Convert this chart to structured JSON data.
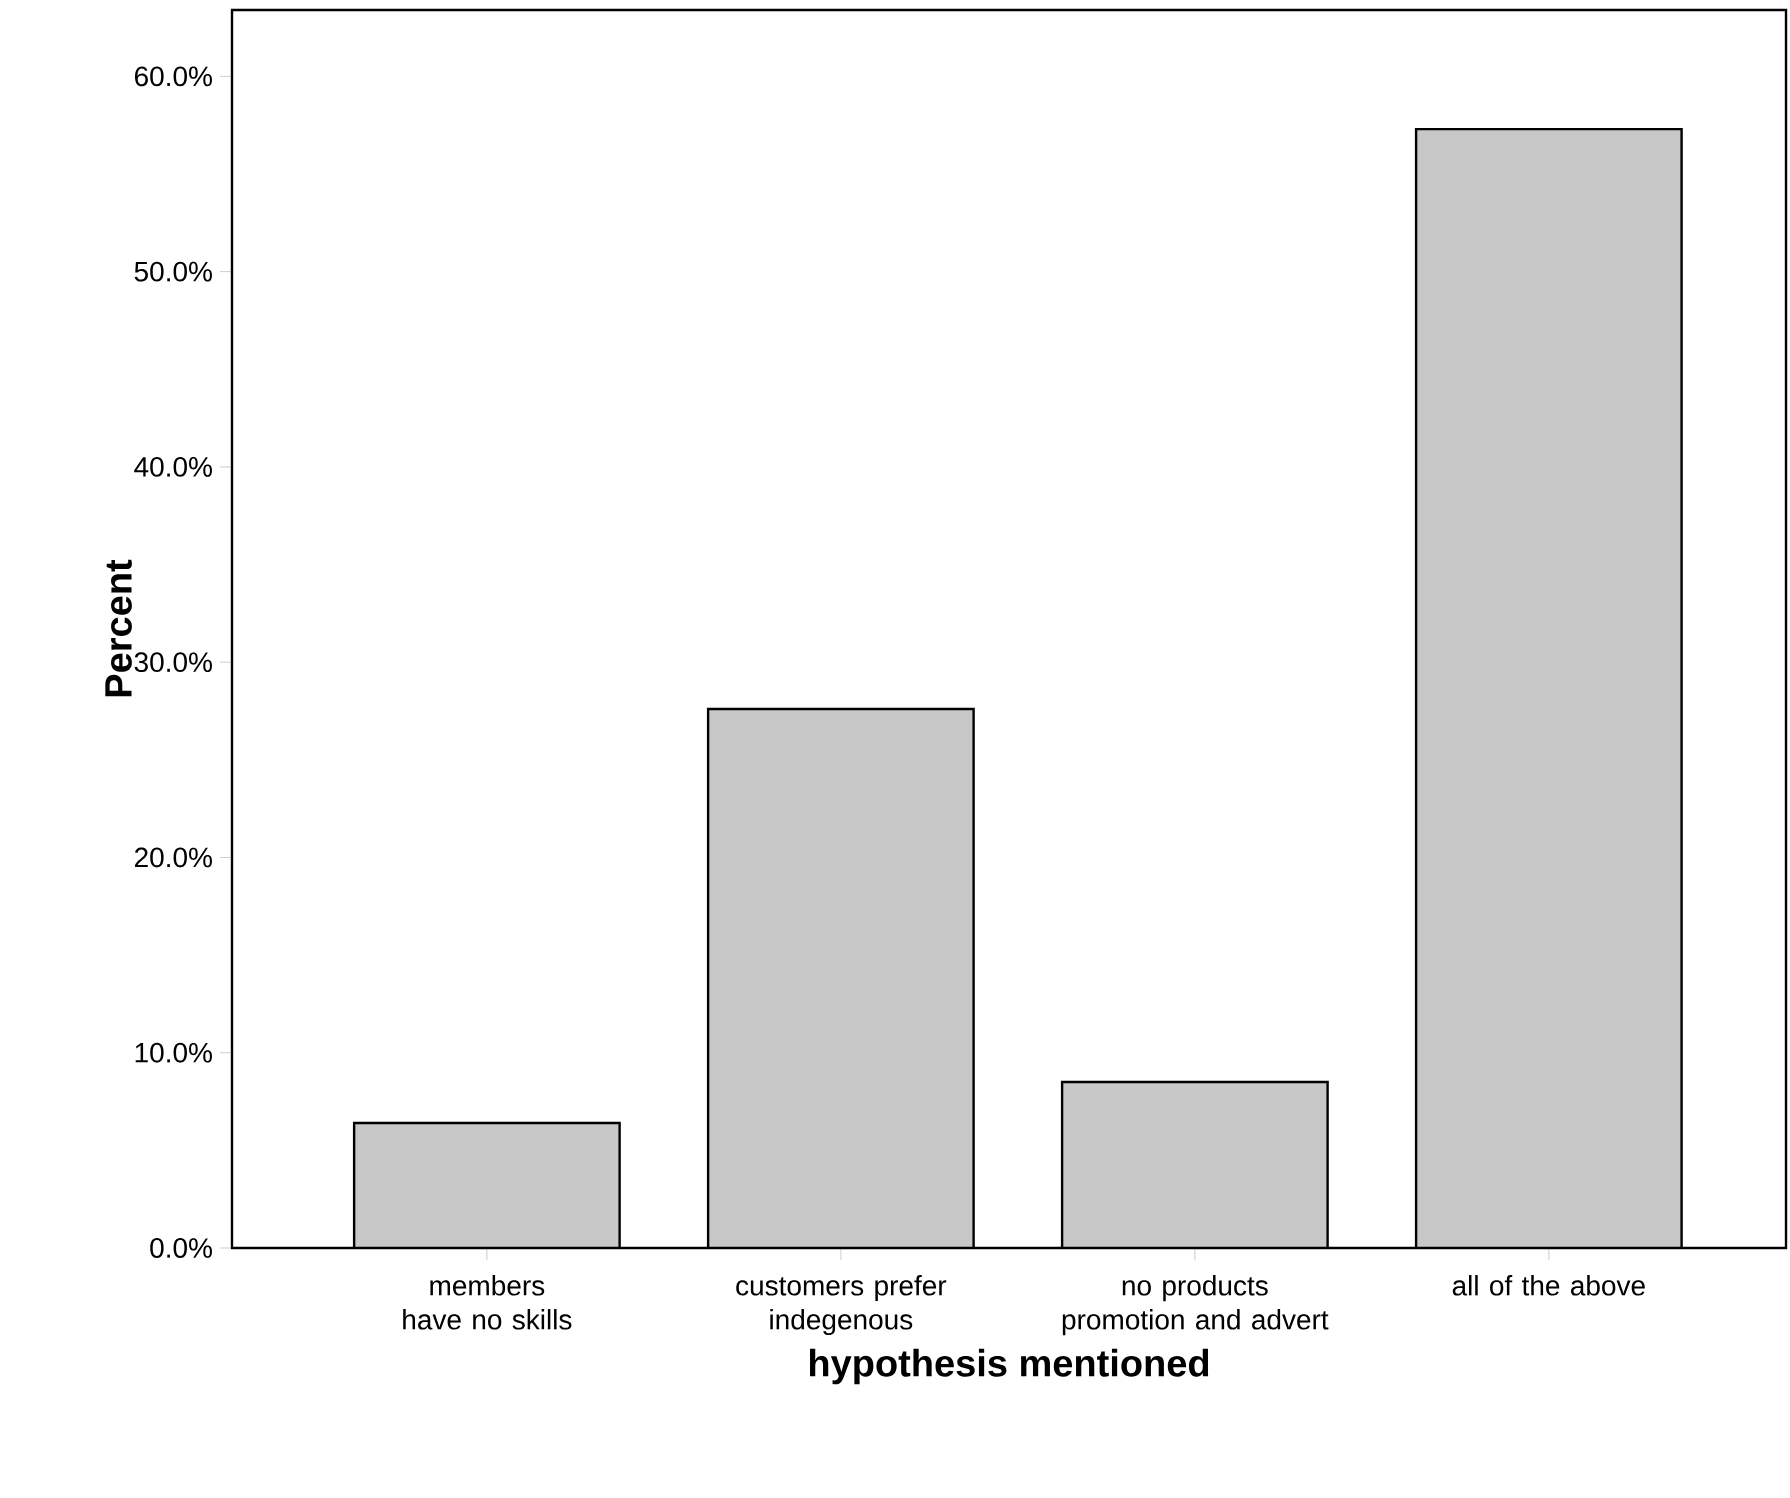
{
  "chart_data": {
    "type": "bar",
    "xlabel": "hypothesis mentioned",
    "ylabel": "Percent",
    "categories": [
      "members have no skills",
      "customers prefer indegenous",
      "no products promotion and advert",
      "all of the above"
    ],
    "values": [
      6.4,
      27.6,
      8.5,
      57.3
    ],
    "color": "#c8c8c8",
    "ylim": [
      0,
      63.4
    ],
    "yticks": [
      {
        "value": 0,
        "label": "0.0%"
      },
      {
        "value": 10,
        "label": "10.0%"
      },
      {
        "value": 20,
        "label": "20.0%"
      },
      {
        "value": 30,
        "label": "30.0%"
      },
      {
        "value": 40,
        "label": "40.0%"
      },
      {
        "value": 50,
        "label": "50.0%"
      },
      {
        "value": 60,
        "label": "60.0%"
      }
    ],
    "grid": false
  }
}
